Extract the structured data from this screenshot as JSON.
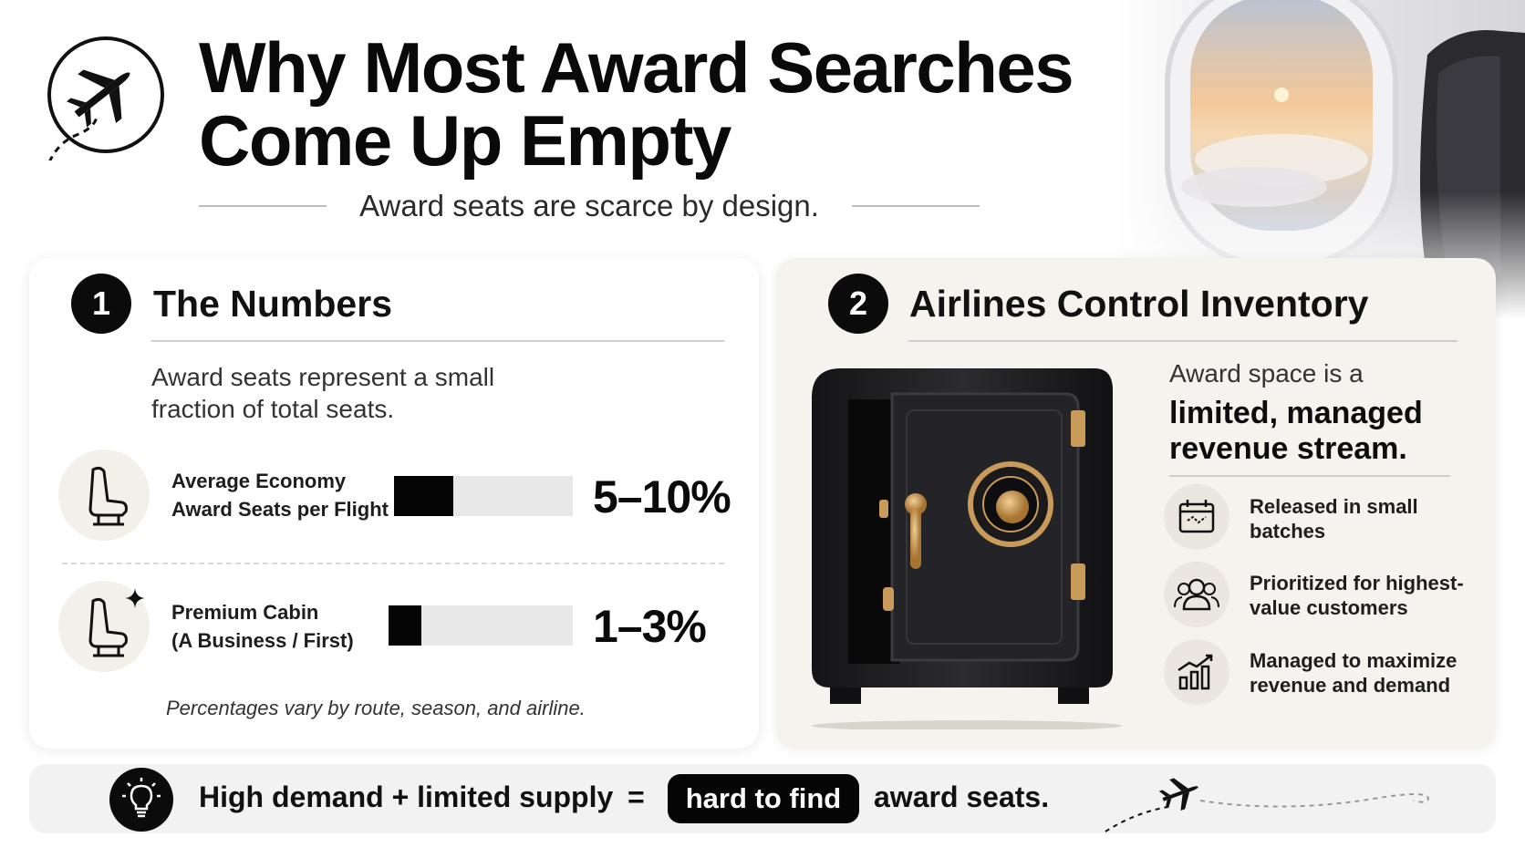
{
  "header": {
    "title_line1": "Why Most Award Searches",
    "title_line2": "Come Up Empty",
    "subtitle": "Award seats are scarce by design."
  },
  "section1": {
    "number": "1",
    "title": "The Numbers",
    "description_line1": "Award seats represent a small",
    "description_line2": "fraction of total seats.",
    "stats": [
      {
        "label_line1": "Average Economy",
        "label_line2": "Award Seats per Flight",
        "value": "5–10%",
        "bar_fraction": 0.33,
        "icon": "seat-icon"
      },
      {
        "label_line1": "Premium Cabin",
        "label_line2": "(A Business / First)",
        "value": "1–3%",
        "bar_fraction": 0.18,
        "icon": "premium-seat-icon"
      }
    ],
    "footnote": "Percentages vary by route, season, and airline."
  },
  "section2": {
    "number": "2",
    "title": "Airlines Control Inventory",
    "description": "Award space is a",
    "description_strong_line1": "limited, managed",
    "description_strong_line2": "revenue stream.",
    "features": [
      {
        "icon": "calendar-icon",
        "line1": "Released in small",
        "line2": "batches"
      },
      {
        "icon": "customers-icon",
        "line1": "Prioritized for highest-",
        "line2": "value customers"
      },
      {
        "icon": "revenue-chart-icon",
        "line1": "Managed to maximize",
        "line2": "revenue and demand"
      }
    ]
  },
  "banner": {
    "part1": "High demand + limited supply",
    "equals": "=",
    "highlight": "hard to find",
    "part2": "award seats."
  },
  "colors": {
    "accent_dark": "#0b0b0b",
    "gold": "#c89b5a",
    "card2_bg": "#f6f3ef"
  }
}
